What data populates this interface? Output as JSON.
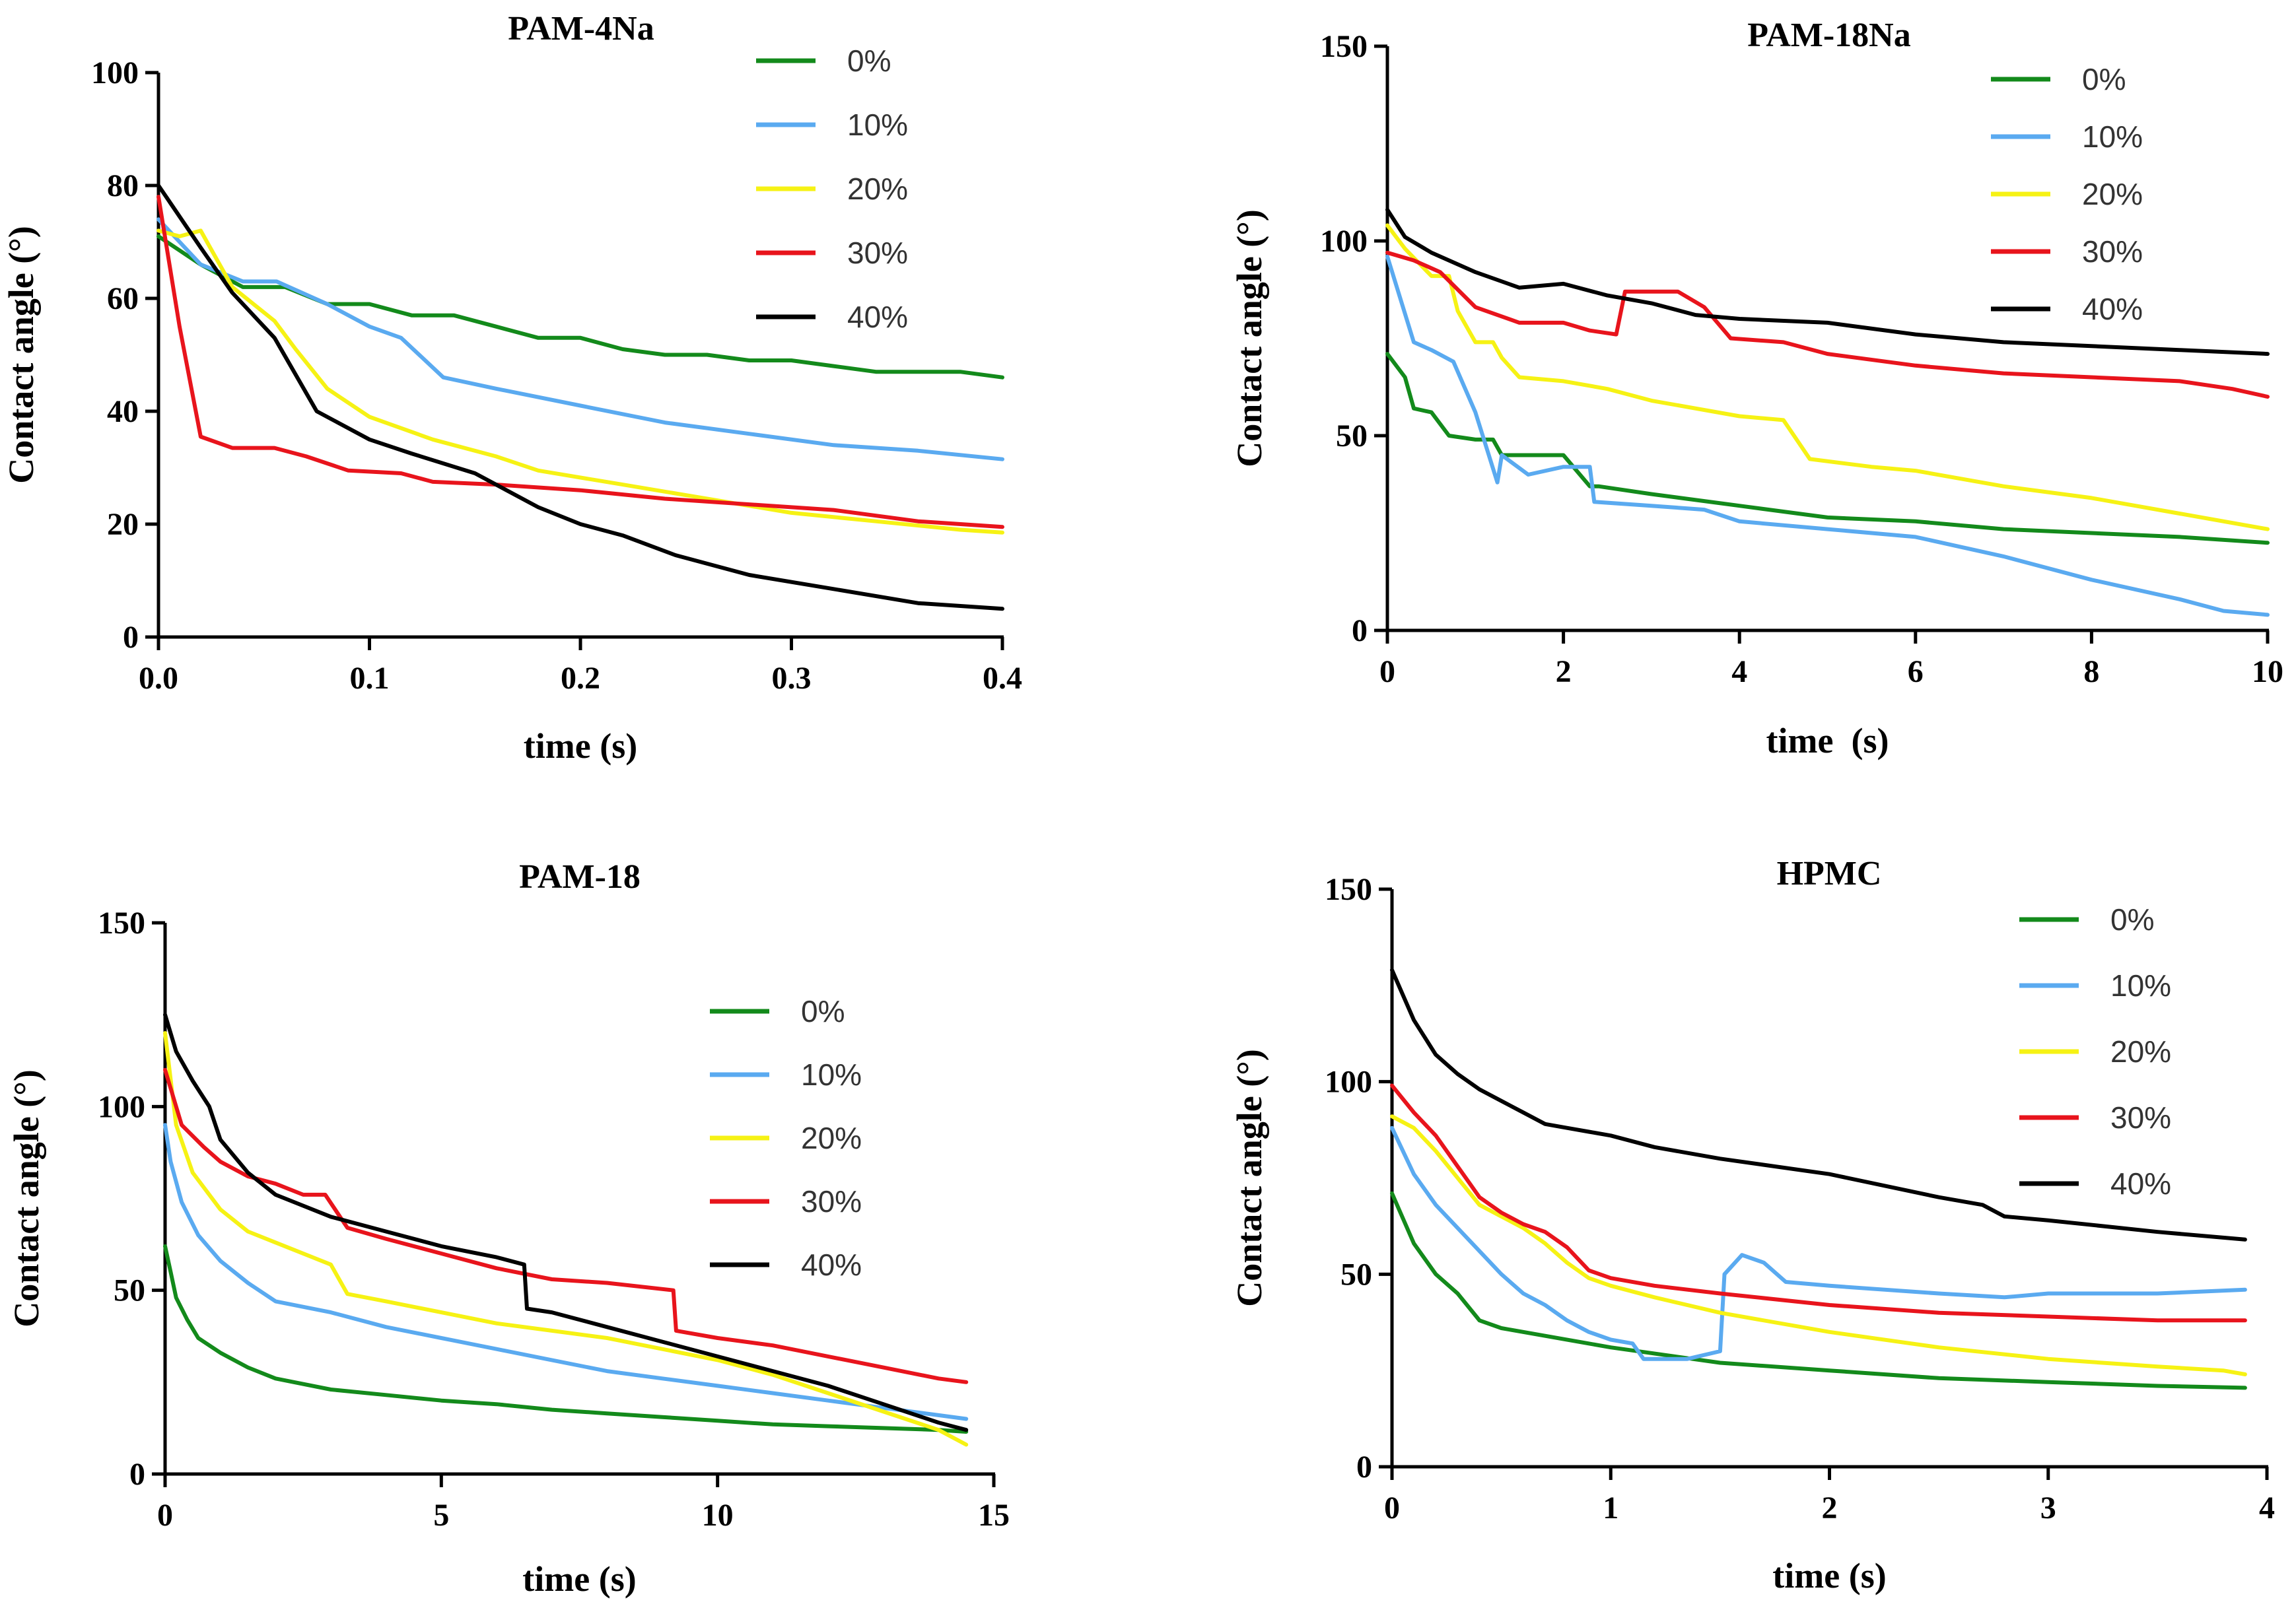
{
  "series_colors": {
    "0%": "#138a1b",
    "10%": "#5aaaf0",
    "20%": "#f6f214",
    "30%": "#e8141c",
    "40%": "#000000"
  },
  "chart_data": [
    {
      "type": "line",
      "title": "PAM-4Na",
      "xlabel": "time (s)",
      "ylabel": "Contact angle (°)",
      "xlim": [
        0,
        0.4
      ],
      "ylim": [
        0,
        100
      ],
      "xticks": [
        0.0,
        0.1,
        0.2,
        0.3,
        0.4
      ],
      "xtick_labels": [
        "0.0",
        "0.1",
        "0.2",
        "0.3",
        "0.4"
      ],
      "yticks": [
        0,
        20,
        40,
        60,
        80,
        100
      ],
      "ytick_labels": [
        "0",
        "20",
        "40",
        "60",
        "80",
        "100"
      ],
      "legend": "top-right",
      "series": [
        {
          "name": "0%",
          "x": [
            0,
            0.02,
            0.04,
            0.06,
            0.08,
            0.1,
            0.12,
            0.14,
            0.16,
            0.18,
            0.2,
            0.22,
            0.24,
            0.26,
            0.28,
            0.3,
            0.32,
            0.34,
            0.36,
            0.38,
            0.4
          ],
          "y": [
            71,
            66,
            62,
            62,
            59,
            59,
            57,
            57,
            55,
            53,
            53,
            51,
            50,
            50,
            49,
            49,
            48,
            47,
            47,
            47,
            46
          ]
        },
        {
          "name": "10%",
          "x": [
            0,
            0.02,
            0.04,
            0.056,
            0.08,
            0.1,
            0.115,
            0.135,
            0.16,
            0.2,
            0.24,
            0.28,
            0.32,
            0.36,
            0.4
          ],
          "y": [
            74,
            66,
            63,
            63,
            59,
            55,
            53,
            46,
            44,
            41,
            38,
            36,
            34,
            33,
            31.5
          ]
        },
        {
          "name": "20%",
          "x": [
            0,
            0.01,
            0.02,
            0.035,
            0.055,
            0.065,
            0.08,
            0.1,
            0.13,
            0.16,
            0.18,
            0.22,
            0.26,
            0.3,
            0.34,
            0.38,
            0.4
          ],
          "y": [
            72,
            71,
            72,
            62,
            56,
            51,
            44,
            39,
            35,
            32,
            29.5,
            27,
            24.5,
            22,
            20.5,
            19,
            18.5
          ]
        },
        {
          "name": "30%",
          "x": [
            0,
            0.01,
            0.02,
            0.035,
            0.055,
            0.07,
            0.09,
            0.115,
            0.13,
            0.16,
            0.2,
            0.24,
            0.28,
            0.32,
            0.36,
            0.4
          ],
          "y": [
            78,
            55,
            35.5,
            33.5,
            33.5,
            32,
            29.5,
            29,
            27.5,
            27,
            26,
            24.5,
            23.5,
            22.5,
            20.5,
            19.5
          ]
        },
        {
          "name": "40%",
          "x": [
            0,
            0.02,
            0.035,
            0.055,
            0.075,
            0.1,
            0.12,
            0.15,
            0.18,
            0.2,
            0.22,
            0.245,
            0.28,
            0.32,
            0.36,
            0.4
          ],
          "y": [
            80,
            69,
            61,
            53,
            40,
            35,
            32.5,
            29,
            23,
            20,
            18,
            14.5,
            11,
            8.5,
            6,
            5
          ]
        }
      ]
    },
    {
      "type": "line",
      "title": "PAM-18Na",
      "xlabel": "time  (s)",
      "ylabel": "Contact angle (°)",
      "xlim": [
        0,
        10
      ],
      "ylim": [
        0,
        150
      ],
      "xticks": [
        0,
        2,
        4,
        6,
        8,
        10
      ],
      "xtick_labels": [
        "0",
        "2",
        "4",
        "6",
        "8",
        "10"
      ],
      "yticks": [
        0,
        50,
        100,
        150
      ],
      "ytick_labels": [
        "0",
        "50",
        "100",
        "150"
      ],
      "legend": "top-right",
      "series": [
        {
          "name": "0%",
          "x": [
            0,
            0.2,
            0.3,
            0.5,
            0.7,
            1.0,
            1.2,
            1.3,
            1.5,
            2.0,
            2.3,
            2.4,
            3.0,
            4.0,
            5.0,
            6.0,
            7.0,
            8.0,
            9.0,
            10.0
          ],
          "y": [
            71,
            65,
            57,
            56,
            50,
            49,
            49,
            45,
            45,
            45,
            37,
            37,
            35,
            32,
            29,
            28,
            26,
            25,
            24,
            22.5
          ]
        },
        {
          "name": "10%",
          "x": [
            0,
            0.3,
            0.5,
            0.75,
            1.0,
            1.25,
            1.3,
            1.6,
            2.0,
            2.3,
            2.35,
            3.0,
            3.6,
            4.0,
            5.0,
            6.0,
            7.0,
            8.0,
            9.0,
            9.5,
            10.0
          ],
          "y": [
            96,
            74,
            72,
            69,
            56,
            38,
            45,
            40,
            42,
            42,
            33,
            32,
            31,
            28,
            26,
            24,
            19,
            13,
            8,
            5,
            4
          ]
        },
        {
          "name": "20%",
          "x": [
            0,
            0.2,
            0.5,
            0.7,
            0.8,
            1.0,
            1.2,
            1.3,
            1.5,
            2.0,
            2.5,
            3.0,
            4.0,
            4.5,
            4.8,
            5.5,
            6.0,
            7.0,
            8.0,
            9.0,
            10.0
          ],
          "y": [
            104,
            98,
            91,
            91,
            82,
            74,
            74,
            70,
            65,
            64,
            62,
            59,
            55,
            54,
            44,
            42,
            41,
            37,
            34,
            30,
            26
          ]
        },
        {
          "name": "30%",
          "x": [
            0,
            0.3,
            0.6,
            1.0,
            1.5,
            2.0,
            2.3,
            2.6,
            2.7,
            3.3,
            3.6,
            3.9,
            4.5,
            5.0,
            6.0,
            7.0,
            8.0,
            9.0,
            9.6,
            10.0
          ],
          "y": [
            97,
            95,
            92,
            83,
            79,
            79,
            77,
            76,
            87,
            87,
            83,
            75,
            74,
            71,
            68,
            66,
            65,
            64,
            62,
            60
          ]
        },
        {
          "name": "40%",
          "x": [
            0,
            0.2,
            0.5,
            1.0,
            1.5,
            2.0,
            2.5,
            3.0,
            3.5,
            4.0,
            5.0,
            6.0,
            7.0,
            8.0,
            9.0,
            10.0
          ],
          "y": [
            108,
            101,
            97,
            92,
            88,
            89,
            86,
            84,
            81,
            80,
            79,
            76,
            74,
            73,
            72,
            71
          ]
        }
      ]
    },
    {
      "type": "line",
      "title": "PAM-18",
      "xlabel": "time (s)",
      "ylabel": "Contact angle (°)",
      "xlim": [
        0,
        15
      ],
      "ylim": [
        0,
        150
      ],
      "xticks": [
        0,
        5,
        10,
        15
      ],
      "xtick_labels": [
        "0",
        "5",
        "10",
        "15"
      ],
      "yticks": [
        0,
        50,
        100,
        150
      ],
      "ytick_labels": [
        "0",
        "50",
        "100",
        "150"
      ],
      "legend": "center-right",
      "series": [
        {
          "name": "0%",
          "x": [
            0,
            0.1,
            0.2,
            0.4,
            0.6,
            1.0,
            1.5,
            2.0,
            3.0,
            4.0,
            5.0,
            6.0,
            7.0,
            8.0,
            9.0,
            10.0,
            11.0,
            12.0,
            13.0,
            14.0,
            14.5
          ],
          "y": [
            62,
            55,
            48,
            42,
            37,
            33,
            29,
            26,
            23,
            21.5,
            20,
            19,
            17.5,
            16.5,
            15.5,
            14.5,
            13.5,
            13,
            12.5,
            12,
            11.5
          ]
        },
        {
          "name": "10%",
          "x": [
            0,
            0.1,
            0.3,
            0.6,
            1.0,
            1.5,
            2.0,
            3.0,
            4.0,
            5.0,
            6.0,
            7.0,
            8.0,
            9.0,
            10.0,
            11.0,
            12.0,
            13.0,
            14.0,
            14.5
          ],
          "y": [
            95,
            85,
            74,
            65,
            58,
            52,
            47,
            44,
            40,
            37,
            34,
            31,
            28,
            26,
            24,
            22,
            20,
            18,
            16,
            15
          ]
        },
        {
          "name": "20%",
          "x": [
            0,
            0.2,
            0.5,
            1.0,
            1.5,
            2.0,
            3.0,
            3.3,
            4.0,
            5.0,
            6.0,
            7.0,
            8.0,
            9.0,
            10.0,
            11.0,
            12.0,
            13.0,
            14.0,
            14.5
          ],
          "y": [
            120,
            95,
            82,
            72,
            66,
            63,
            57,
            49,
            47,
            44,
            41,
            39,
            37,
            34,
            31,
            27,
            22,
            17,
            12,
            8
          ]
        },
        {
          "name": "30%",
          "x": [
            0,
            0.3,
            0.7,
            1.0,
            1.5,
            2.0,
            2.5,
            2.9,
            3.3,
            4.0,
            5.0,
            6.0,
            7.0,
            8.0,
            9.2,
            9.25,
            10.0,
            11.0,
            12.0,
            13.0,
            14.0,
            14.5
          ],
          "y": [
            110,
            95,
            89,
            85,
            81,
            79,
            76,
            76,
            67,
            64,
            60,
            56,
            53,
            52,
            50,
            39,
            37,
            35,
            32,
            29,
            26,
            25
          ]
        },
        {
          "name": "40%",
          "x": [
            0,
            0.2,
            0.5,
            0.8,
            1.0,
            1.5,
            2.0,
            3.0,
            4.0,
            5.0,
            6.0,
            6.5,
            6.55,
            7.0,
            8.0,
            9.0,
            10.0,
            11.0,
            12.0,
            13.0,
            14.0,
            14.5
          ],
          "y": [
            125,
            115,
            107,
            100,
            91,
            82,
            76,
            70,
            66,
            62,
            59,
            57,
            45,
            44,
            40,
            36,
            32,
            28,
            24,
            19,
            14,
            12
          ]
        }
      ]
    },
    {
      "type": "line",
      "title": "HPMC",
      "xlabel": "time (s)",
      "ylabel": "Contact angle (°)",
      "xlim": [
        0,
        4
      ],
      "ylim": [
        0,
        150
      ],
      "xticks": [
        0,
        1,
        2,
        3,
        4
      ],
      "xtick_labels": [
        "0",
        "1",
        "2",
        "3",
        "4"
      ],
      "yticks": [
        0,
        50,
        100,
        150
      ],
      "ytick_labels": [
        "0",
        "50",
        "100",
        "150"
      ],
      "legend": "top-right",
      "series": [
        {
          "name": "0%",
          "x": [
            0,
            0.1,
            0.2,
            0.3,
            0.4,
            0.5,
            0.7,
            1.0,
            1.5,
            2.0,
            2.5,
            3.0,
            3.5,
            3.9
          ],
          "y": [
            71,
            58,
            50,
            45,
            38,
            36,
            34,
            31,
            27,
            25,
            23,
            22,
            21,
            20.5
          ]
        },
        {
          "name": "10%",
          "x": [
            0,
            0.1,
            0.2,
            0.3,
            0.4,
            0.5,
            0.6,
            0.7,
            0.8,
            0.9,
            1.0,
            1.1,
            1.15,
            1.35,
            1.5,
            1.52,
            1.6,
            1.7,
            1.8,
            2.0,
            2.5,
            2.8,
            3.0,
            3.5,
            3.9
          ],
          "y": [
            88,
            76,
            68,
            62,
            56,
            50,
            45,
            42,
            38,
            35,
            33,
            32,
            28,
            28,
            30,
            50,
            55,
            53,
            48,
            47,
            45,
            44,
            45,
            45,
            46
          ]
        },
        {
          "name": "20%",
          "x": [
            0,
            0.1,
            0.2,
            0.3,
            0.4,
            0.5,
            0.6,
            0.7,
            0.8,
            0.9,
            1.0,
            1.2,
            1.5,
            2.0,
            2.5,
            3.0,
            3.5,
            3.8,
            3.9
          ],
          "y": [
            91,
            88,
            82,
            75,
            68,
            65,
            62,
            58,
            53,
            49,
            47,
            44,
            40,
            35,
            31,
            28,
            26,
            25,
            24
          ]
        },
        {
          "name": "30%",
          "x": [
            0,
            0.1,
            0.2,
            0.3,
            0.4,
            0.5,
            0.6,
            0.7,
            0.8,
            0.9,
            1.0,
            1.2,
            1.5,
            2.0,
            2.5,
            3.0,
            3.5,
            3.9
          ],
          "y": [
            99,
            92,
            86,
            78,
            70,
            66,
            63,
            61,
            57,
            51,
            49,
            47,
            45,
            42,
            40,
            39,
            38,
            38
          ]
        },
        {
          "name": "40%",
          "x": [
            0,
            0.1,
            0.2,
            0.3,
            0.4,
            0.5,
            0.6,
            0.7,
            0.8,
            0.9,
            1.0,
            1.2,
            1.5,
            2.0,
            2.5,
            2.7,
            2.8,
            3.0,
            3.5,
            3.9
          ],
          "y": [
            129,
            116,
            107,
            102,
            98,
            95,
            92,
            89,
            88,
            87,
            86,
            83,
            80,
            76,
            70,
            68,
            65,
            64,
            61,
            59
          ]
        }
      ]
    }
  ]
}
